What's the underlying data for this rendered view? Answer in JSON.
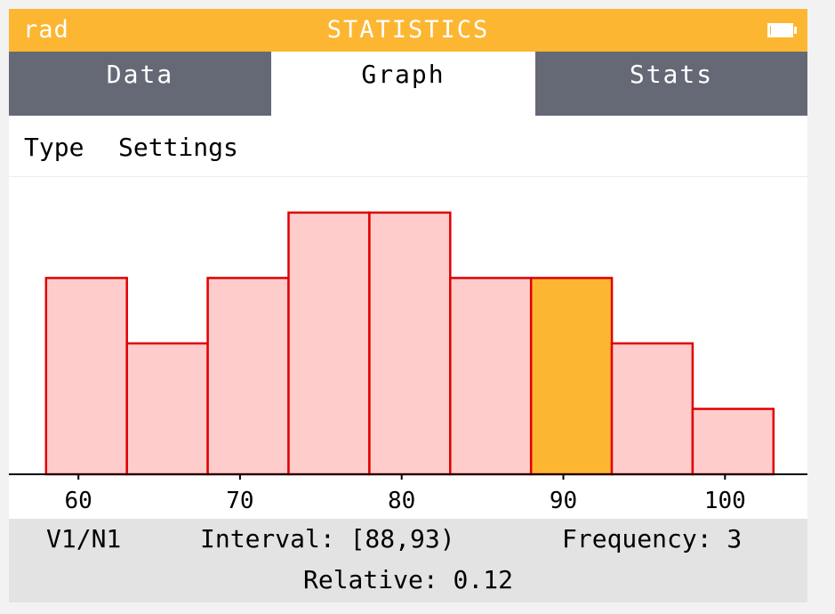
{
  "status_bar": {
    "angle_mode": "rad",
    "title": "STATISTICS",
    "battery_icon": "battery-full-icon",
    "background_color": "#fdb632"
  },
  "tabs": [
    {
      "label": "Data",
      "active": false
    },
    {
      "label": "Graph",
      "active": true
    },
    {
      "label": "Stats",
      "active": false
    }
  ],
  "toolbar": {
    "type_label": "Type",
    "settings_label": "Settings"
  },
  "chart_data": {
    "type": "bar",
    "bin_width": 5,
    "bins": [
      {
        "start": 58,
        "end": 63,
        "frequency": 3
      },
      {
        "start": 63,
        "end": 68,
        "frequency": 2
      },
      {
        "start": 68,
        "end": 73,
        "frequency": 3
      },
      {
        "start": 73,
        "end": 78,
        "frequency": 4
      },
      {
        "start": 78,
        "end": 83,
        "frequency": 4
      },
      {
        "start": 83,
        "end": 88,
        "frequency": 3
      },
      {
        "start": 88,
        "end": 93,
        "frequency": 3
      },
      {
        "start": 93,
        "end": 98,
        "frequency": 2
      },
      {
        "start": 98,
        "end": 103,
        "frequency": 1
      }
    ],
    "selected_bin_index": 6,
    "x_ticks": [
      60,
      70,
      80,
      90,
      100
    ],
    "xlim": [
      55.7,
      105.1
    ],
    "ylim": [
      0,
      4.08
    ],
    "colors": {
      "bar_fill": "#ffcccc",
      "bar_stroke": "#e00000",
      "selected_fill": "#fdb632",
      "axis": "#000000"
    }
  },
  "info": {
    "series": "V1/N1",
    "interval": "Interval: [88,93)",
    "frequency": "Frequency: 3",
    "relative": "Relative: 0.12"
  }
}
